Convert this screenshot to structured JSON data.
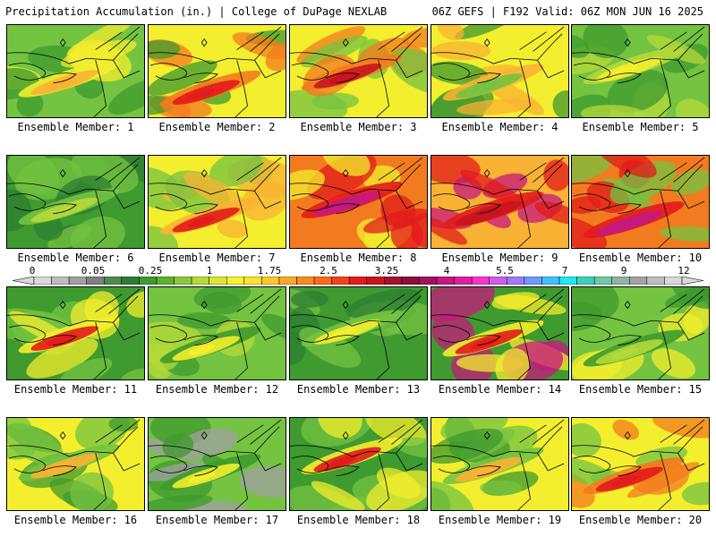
{
  "header": {
    "title": "Precipitation Accumulation (in.) | College of DuPage NEXLAB",
    "run": "06Z GEFS | F192 Valid: 06Z MON JUN 16 2025"
  },
  "legend": {
    "ticks": [
      "0",
      "0.05",
      "0.25",
      "1",
      "1.75",
      "2.5",
      "3.25",
      "4",
      "5.5",
      "7",
      "9",
      "12"
    ],
    "colors": [
      "#d9d9d9",
      "#bdbdbd",
      "#a0a0a0",
      "#7f7f7f",
      "#4f8a4f",
      "#2e7d32",
      "#3f9a2f",
      "#5cb32c",
      "#8cc63f",
      "#b5d93a",
      "#dce831",
      "#f5f230",
      "#ffe22e",
      "#ffc82a",
      "#ffa726",
      "#ff8a1e",
      "#ff6a18",
      "#f5401b",
      "#e21b1b",
      "#c8141f",
      "#a80f2d",
      "#8e0c3b",
      "#a3115c",
      "#c6187e",
      "#e21fa0",
      "#ff33cc",
      "#cf5de8",
      "#9c7cf5",
      "#6b9bff",
      "#3fc0ff",
      "#22e6f0",
      "#38d3b8",
      "#6fc8a6",
      "#8fb5a5",
      "#a3a3a3",
      "#bfbfbf",
      "#d9d9d9"
    ]
  },
  "members": [
    {
      "caption": "Ensemble Member: 1",
      "palette": [
        "#74c341",
        "#f3ee2e",
        "#f9b233",
        "#3f9a2f"
      ]
    },
    {
      "caption": "Ensemble Member: 2",
      "palette": [
        "#f3ee2e",
        "#f37b1f",
        "#e21b1b",
        "#3f9a2f"
      ]
    },
    {
      "caption": "Ensemble Member: 3",
      "palette": [
        "#f3ee2e",
        "#f37b1f",
        "#c8141f",
        "#74c341"
      ]
    },
    {
      "caption": "Ensemble Member: 4",
      "palette": [
        "#f3ee2e",
        "#f9b233",
        "#74c341",
        "#3f9a2f"
      ]
    },
    {
      "caption": "Ensemble Member: 5",
      "palette": [
        "#74c341",
        "#b5d93a",
        "#f3ee2e",
        "#3f9a2f"
      ]
    },
    {
      "caption": "Ensemble Member: 6",
      "palette": [
        "#3f9a2f",
        "#74c341",
        "#b5d93a",
        "#2e7d32"
      ]
    },
    {
      "caption": "Ensemble Member: 7",
      "palette": [
        "#f3ee2e",
        "#f9b233",
        "#e21b1b",
        "#74c341"
      ]
    },
    {
      "caption": "Ensemble Member: 8",
      "palette": [
        "#f37b1f",
        "#e21b1b",
        "#c6187e",
        "#f3ee2e"
      ]
    },
    {
      "caption": "Ensemble Member: 9",
      "palette": [
        "#f9b233",
        "#e21b1b",
        "#c8141f",
        "#c6187e"
      ]
    },
    {
      "caption": "Ensemble Member: 10",
      "palette": [
        "#f37b1f",
        "#e21b1b",
        "#c6187e",
        "#74c341"
      ]
    },
    {
      "caption": "Ensemble Member: 11",
      "palette": [
        "#3f9a2f",
        "#f3ee2e",
        "#e21b1b",
        "#74c341"
      ]
    },
    {
      "caption": "Ensemble Member: 12",
      "palette": [
        "#74c341",
        "#3f9a2f",
        "#f3ee2e",
        "#b5d93a"
      ]
    },
    {
      "caption": "Ensemble Member: 13",
      "palette": [
        "#3f9a2f",
        "#74c341",
        "#f3ee2e",
        "#2e7d32"
      ]
    },
    {
      "caption": "Ensemble Member: 14",
      "palette": [
        "#3f9a2f",
        "#f3ee2e",
        "#e21b1b",
        "#c6187e"
      ]
    },
    {
      "caption": "Ensemble Member: 15",
      "palette": [
        "#74c341",
        "#3f9a2f",
        "#b5d93a",
        "#f3ee2e"
      ]
    },
    {
      "caption": "Ensemble Member: 16",
      "palette": [
        "#f3ee2e",
        "#74c341",
        "#f9b233",
        "#3f9a2f"
      ]
    },
    {
      "caption": "Ensemble Member: 17",
      "palette": [
        "#74c341",
        "#3f9a2f",
        "#f3ee2e",
        "#a0a0a0"
      ]
    },
    {
      "caption": "Ensemble Member: 18",
      "palette": [
        "#3f9a2f",
        "#f3ee2e",
        "#e21b1b",
        "#74c341"
      ]
    },
    {
      "caption": "Ensemble Member: 19",
      "palette": [
        "#f3ee2e",
        "#74c341",
        "#f9b233",
        "#3f9a2f"
      ]
    },
    {
      "caption": "Ensemble Member: 20",
      "palette": [
        "#f3ee2e",
        "#f37b1f",
        "#e21b1b",
        "#74c341"
      ]
    }
  ]
}
